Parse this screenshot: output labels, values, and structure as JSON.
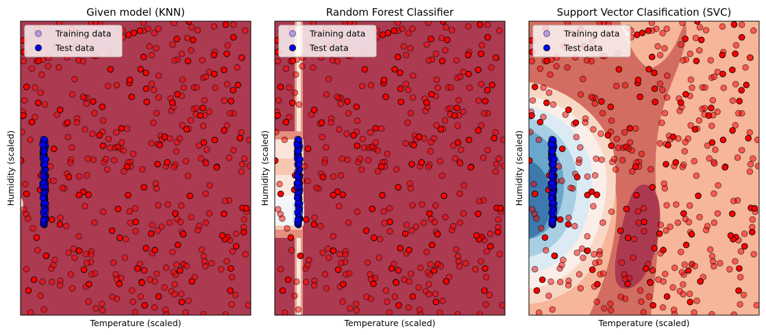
{
  "chart_data": [
    {
      "type": "scatter",
      "title": "Given model (KNN)",
      "xlabel": "Temperature (scaled)",
      "ylabel": "Humidity (scaled)",
      "ticks_visible": false,
      "legend_position": "upper-left",
      "legend": [
        {
          "label": "Training data",
          "color": "#7f72d6",
          "style": "circle-translucent"
        },
        {
          "label": "Test data",
          "color": "#0000ff",
          "style": "circle-solid"
        }
      ],
      "background": "decision-surface",
      "background_description": "nearly uniform dark red (class 1 region)",
      "series": [
        {
          "name": "Training data",
          "class_colors": {
            "0": "#0000ff",
            "1": "#ff0000"
          }
        },
        {
          "name": "Test data",
          "class_colors": {
            "0": "#0000ff",
            "1": "#ff0000"
          }
        }
      ]
    },
    {
      "type": "scatter",
      "title": "Random Forest Classifier",
      "xlabel": "Temperature (scaled)",
      "ylabel": "Humidity (scaled)",
      "ticks_visible": false,
      "legend_position": "upper-left",
      "legend": [
        {
          "label": "Training data",
          "color": "#7f72d6",
          "style": "circle-translucent"
        },
        {
          "label": "Test data",
          "color": "#0000ff",
          "style": "circle-solid"
        }
      ],
      "background": "decision-surface",
      "background_description": "dark red with a thin vertical light band and horizontal light bands on the left edge",
      "series": [
        {
          "name": "Training data",
          "class_colors": {
            "0": "#0000ff",
            "1": "#ff0000"
          }
        },
        {
          "name": "Test data",
          "class_colors": {
            "0": "#0000ff",
            "1": "#ff0000"
          }
        }
      ]
    },
    {
      "type": "scatter",
      "title": "Support Vector Clasification (SVC)",
      "xlabel": "Temperature (scaled)",
      "ylabel": "Humidity (scaled)",
      "ticks_visible": false,
      "legend_position": "upper-left",
      "legend": [
        {
          "label": "Training data",
          "color": "#7f72d6",
          "style": "circle-translucent"
        },
        {
          "label": "Test data",
          "color": "#0000ff",
          "style": "circle-solid"
        }
      ],
      "background": "decision-surface",
      "background_description": "smooth RdBu contour field, blue blob at left-center, red/salmon elsewhere",
      "series": [
        {
          "name": "Training data",
          "class_colors": {
            "0": "#0000ff",
            "1": "#ff0000"
          }
        },
        {
          "name": "Test data",
          "class_colors": {
            "0": "#0000ff",
            "1": "#ff0000"
          }
        }
      ]
    }
  ]
}
